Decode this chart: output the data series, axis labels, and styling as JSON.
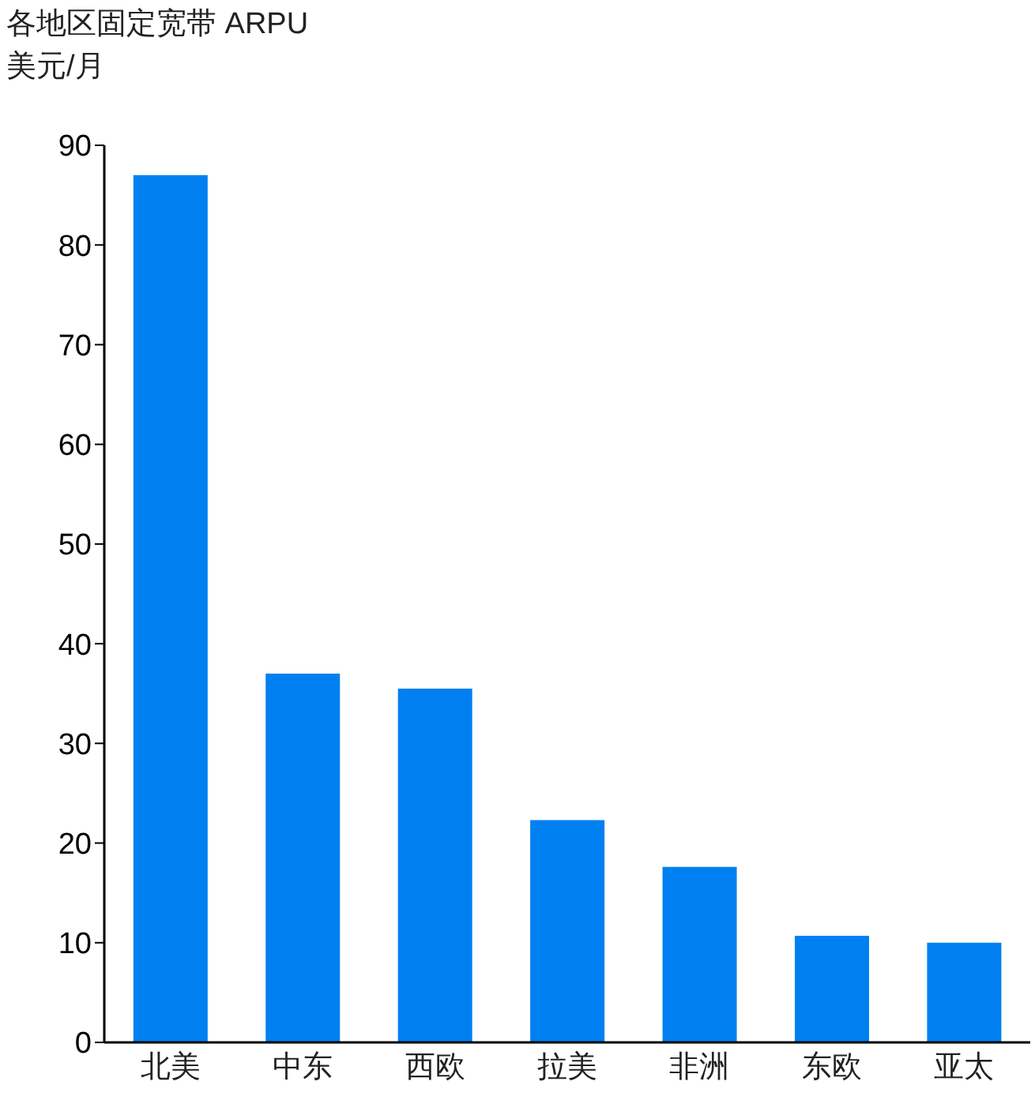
{
  "chart_data": {
    "type": "bar",
    "title": "各地区固定宽带 ARPU",
    "ylabel": "美元/月",
    "categories": [
      "北美",
      "中东",
      "西欧",
      "拉美",
      "非洲",
      "东欧",
      "亚太"
    ],
    "values": [
      87,
      37,
      35.5,
      22.3,
      17.6,
      10.7,
      10
    ],
    "color": "#0080f0",
    "ylim": [
      0,
      90
    ],
    "yticks": [
      0,
      10,
      20,
      30,
      40,
      50,
      60,
      70,
      80,
      90
    ],
    "grid": false
  }
}
